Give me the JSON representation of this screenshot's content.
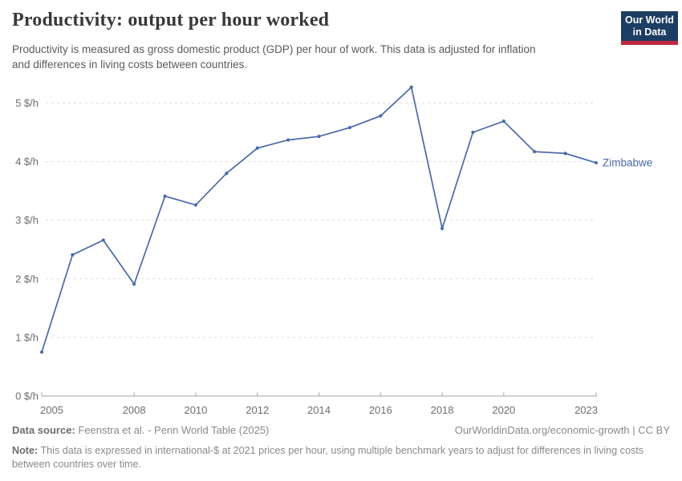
{
  "header": {
    "title": "Productivity: output per hour worked",
    "subtitle_lines": [
      "Productivity is measured as gross domestic product (GDP) per hour of work. This data is adjusted for inflation",
      "and differences in living costs between countries."
    ],
    "logo": {
      "line1": "Our World",
      "line2": "in Data",
      "bg_color": "#1d3d63",
      "accent_color": "#c0283c"
    }
  },
  "chart_data": {
    "type": "line",
    "title": "Productivity: output per hour worked",
    "entity_label": "Zimbabwe",
    "unit": "$/h",
    "x": [
      2005,
      2006,
      2007,
      2008,
      2009,
      2010,
      2011,
      2012,
      2013,
      2014,
      2015,
      2016,
      2017,
      2018,
      2019,
      2020,
      2021,
      2022,
      2023
    ],
    "series": [
      {
        "name": "Zimbabwe",
        "color": "#4a69a8",
        "values": [
          0.75,
          2.41,
          2.66,
          1.91,
          3.41,
          3.26,
          3.8,
          4.23,
          4.37,
          4.43,
          4.58,
          4.78,
          5.27,
          2.86,
          4.5,
          4.69,
          4.17,
          4.14,
          3.98
        ]
      }
    ],
    "xticks": [
      2005,
      2008,
      2010,
      2012,
      2014,
      2016,
      2018,
      2020,
      2023
    ],
    "yticks": [
      0,
      1,
      2,
      3,
      4,
      5
    ],
    "ytick_labels": [
      "0 $/h",
      "1 $/h",
      "2 $/h",
      "3 $/h",
      "4 $/h",
      "5 $/h"
    ],
    "ylim": [
      0,
      5.5
    ],
    "grid": "horizontal-dashed",
    "legend_position": "end-of-line",
    "colors": {
      "grid": "#dcdcdc",
      "axis": "#a3a3a3",
      "tick_label": "#6e6e6e"
    }
  },
  "footer": {
    "data_source_label": "Data source:",
    "data_source_text": "Feenstra et al. - Penn World Table (2025)",
    "attribution": "OurWorldinData.org/economic-growth | CC BY",
    "note_label": "Note:",
    "note_lines": [
      "This data is expressed in international-$ at 2021 prices per hour, using multiple benchmark years to adjust for differences in living costs",
      "between countries over time."
    ]
  }
}
